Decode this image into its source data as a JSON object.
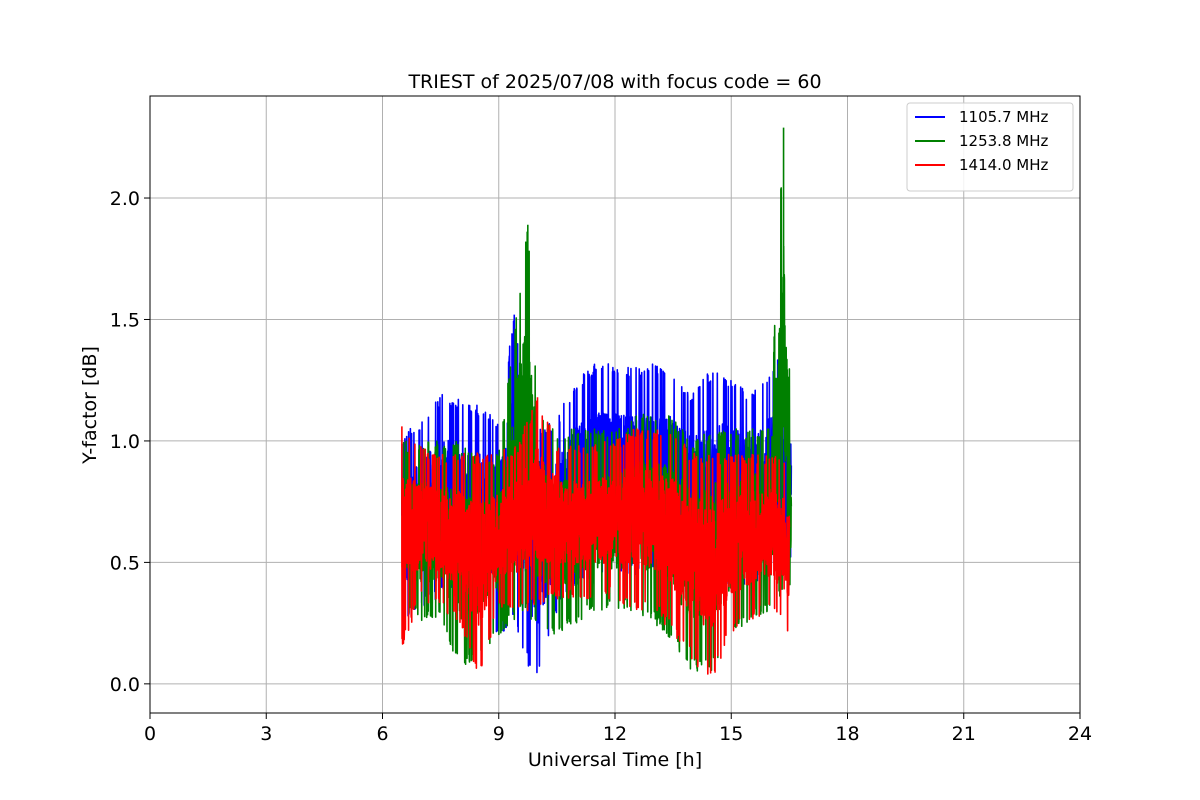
{
  "chart_data": {
    "type": "line",
    "title": "TRIEST of 2025/07/08 with focus code = 60",
    "xlabel": "Universal Time [h]",
    "ylabel": "Y-factor [dB]",
    "xlim": [
      0,
      24
    ],
    "ylim": [
      -0.12,
      2.42
    ],
    "xticks": [
      0,
      3,
      6,
      9,
      12,
      15,
      18,
      21,
      24
    ],
    "xtick_labels": [
      "0",
      "3",
      "6",
      "9",
      "12",
      "15",
      "18",
      "21",
      "24"
    ],
    "yticks": [
      0.0,
      0.5,
      1.0,
      1.5,
      2.0
    ],
    "ytick_labels": [
      "0.0",
      "0.5",
      "1.0",
      "1.5",
      "2.0"
    ],
    "grid": true,
    "legend_position": "top-right",
    "data_time_range": [
      6.45,
      16.55
    ],
    "series": [
      {
        "name": "1105.7 MHz",
        "color": "#0000ff",
        "envelope": [
          {
            "x": 6.5,
            "low": 0.23,
            "high": 1.02
          },
          {
            "x": 7.0,
            "low": 0.3,
            "high": 1.1
          },
          {
            "x": 7.5,
            "low": 0.35,
            "high": 1.2
          },
          {
            "x": 8.0,
            "low": 0.35,
            "high": 1.18
          },
          {
            "x": 8.5,
            "low": 0.3,
            "high": 1.15
          },
          {
            "x": 9.0,
            "low": 0.2,
            "high": 1.1
          },
          {
            "x": 9.4,
            "low": 0.25,
            "high": 1.52
          },
          {
            "x": 9.8,
            "low": 0.05,
            "high": 1.1
          },
          {
            "x": 10.0,
            "low": 0.0,
            "high": 1.05
          },
          {
            "x": 10.5,
            "low": 0.3,
            "high": 1.1
          },
          {
            "x": 11.0,
            "low": 0.4,
            "high": 1.25
          },
          {
            "x": 11.5,
            "low": 0.4,
            "high": 1.32
          },
          {
            "x": 12.0,
            "low": 0.45,
            "high": 1.33
          },
          {
            "x": 12.5,
            "low": 0.45,
            "high": 1.3
          },
          {
            "x": 13.0,
            "low": 0.45,
            "high": 1.32
          },
          {
            "x": 13.5,
            "low": 0.4,
            "high": 1.3
          },
          {
            "x": 14.0,
            "low": 0.35,
            "high": 1.2
          },
          {
            "x": 14.5,
            "low": 0.35,
            "high": 1.3
          },
          {
            "x": 15.0,
            "low": 0.4,
            "high": 1.25
          },
          {
            "x": 15.5,
            "low": 0.4,
            "high": 1.2
          },
          {
            "x": 16.0,
            "low": 0.45,
            "high": 1.3
          },
          {
            "x": 16.3,
            "low": 0.5,
            "high": 1.35
          },
          {
            "x": 16.55,
            "low": 0.5,
            "high": 1.15
          }
        ]
      },
      {
        "name": "1253.8 MHz",
        "color": "#008000",
        "envelope": [
          {
            "x": 6.5,
            "low": 0.3,
            "high": 1.0
          },
          {
            "x": 7.0,
            "low": 0.25,
            "high": 1.0
          },
          {
            "x": 7.5,
            "low": 0.25,
            "high": 1.0
          },
          {
            "x": 8.0,
            "low": 0.05,
            "high": 1.0
          },
          {
            "x": 8.5,
            "low": 0.1,
            "high": 0.95
          },
          {
            "x": 9.0,
            "low": 0.2,
            "high": 0.95
          },
          {
            "x": 9.75,
            "low": 0.3,
            "high": 1.89
          },
          {
            "x": 10.0,
            "low": 0.2,
            "high": 1.15
          },
          {
            "x": 10.5,
            "low": 0.2,
            "high": 1.05
          },
          {
            "x": 11.0,
            "low": 0.25,
            "high": 1.05
          },
          {
            "x": 11.5,
            "low": 0.3,
            "high": 1.05
          },
          {
            "x": 12.0,
            "low": 0.3,
            "high": 1.05
          },
          {
            "x": 12.5,
            "low": 0.3,
            "high": 1.1
          },
          {
            "x": 13.0,
            "low": 0.25,
            "high": 1.12
          },
          {
            "x": 13.5,
            "low": 0.15,
            "high": 1.1
          },
          {
            "x": 14.0,
            "low": 0.05,
            "high": 1.0
          },
          {
            "x": 14.5,
            "low": 0.05,
            "high": 1.05
          },
          {
            "x": 15.0,
            "low": 0.2,
            "high": 1.05
          },
          {
            "x": 15.5,
            "low": 0.25,
            "high": 1.05
          },
          {
            "x": 16.0,
            "low": 0.3,
            "high": 1.05
          },
          {
            "x": 16.35,
            "low": 0.35,
            "high": 2.29
          },
          {
            "x": 16.55,
            "low": 0.4,
            "high": 1.0
          }
        ]
      },
      {
        "name": "1414.0 MHz",
        "color": "#ff0000",
        "envelope": [
          {
            "x": 6.5,
            "low": 0.14,
            "high": 1.06
          },
          {
            "x": 7.0,
            "low": 0.35,
            "high": 0.98
          },
          {
            "x": 7.5,
            "low": 0.3,
            "high": 0.95
          },
          {
            "x": 8.0,
            "low": 0.25,
            "high": 0.95
          },
          {
            "x": 8.5,
            "low": 0.02,
            "high": 0.95
          },
          {
            "x": 9.0,
            "low": 0.3,
            "high": 0.95
          },
          {
            "x": 9.5,
            "low": 0.3,
            "high": 1.0
          },
          {
            "x": 10.0,
            "low": 0.3,
            "high": 1.18
          },
          {
            "x": 10.5,
            "low": 0.35,
            "high": 1.0
          },
          {
            "x": 11.0,
            "low": 0.35,
            "high": 0.98
          },
          {
            "x": 11.5,
            "low": 0.35,
            "high": 1.0
          },
          {
            "x": 12.0,
            "low": 0.35,
            "high": 1.0
          },
          {
            "x": 12.5,
            "low": 0.3,
            "high": 1.05
          },
          {
            "x": 13.0,
            "low": 0.3,
            "high": 1.05
          },
          {
            "x": 13.5,
            "low": 0.2,
            "high": 1.05
          },
          {
            "x": 14.0,
            "low": 0.1,
            "high": 0.95
          },
          {
            "x": 14.45,
            "low": 0.0,
            "high": 0.95
          },
          {
            "x": 15.0,
            "low": 0.2,
            "high": 0.95
          },
          {
            "x": 15.5,
            "low": 0.25,
            "high": 0.95
          },
          {
            "x": 16.0,
            "low": 0.3,
            "high": 0.95
          },
          {
            "x": 16.5,
            "low": 0.2,
            "high": 0.9
          }
        ]
      }
    ]
  }
}
